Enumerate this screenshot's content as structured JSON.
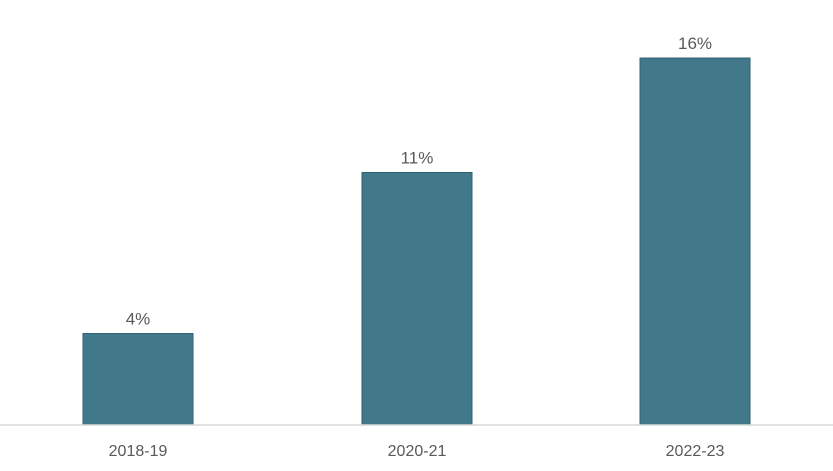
{
  "colors": {
    "bar": "#41788a",
    "bar_stroke": "#2f6273",
    "axis": "#d9d9d9",
    "text": "#595959"
  },
  "chart_data": {
    "type": "bar",
    "categories": [
      "2018-19",
      "2020-21",
      "2022-23"
    ],
    "values": [
      4,
      11,
      16
    ],
    "data_labels": [
      "4%",
      "11%",
      "16%"
    ],
    "title": "",
    "xlabel": "",
    "ylabel": "",
    "ylim": [
      0,
      16
    ],
    "grid": false,
    "legend": "none"
  }
}
